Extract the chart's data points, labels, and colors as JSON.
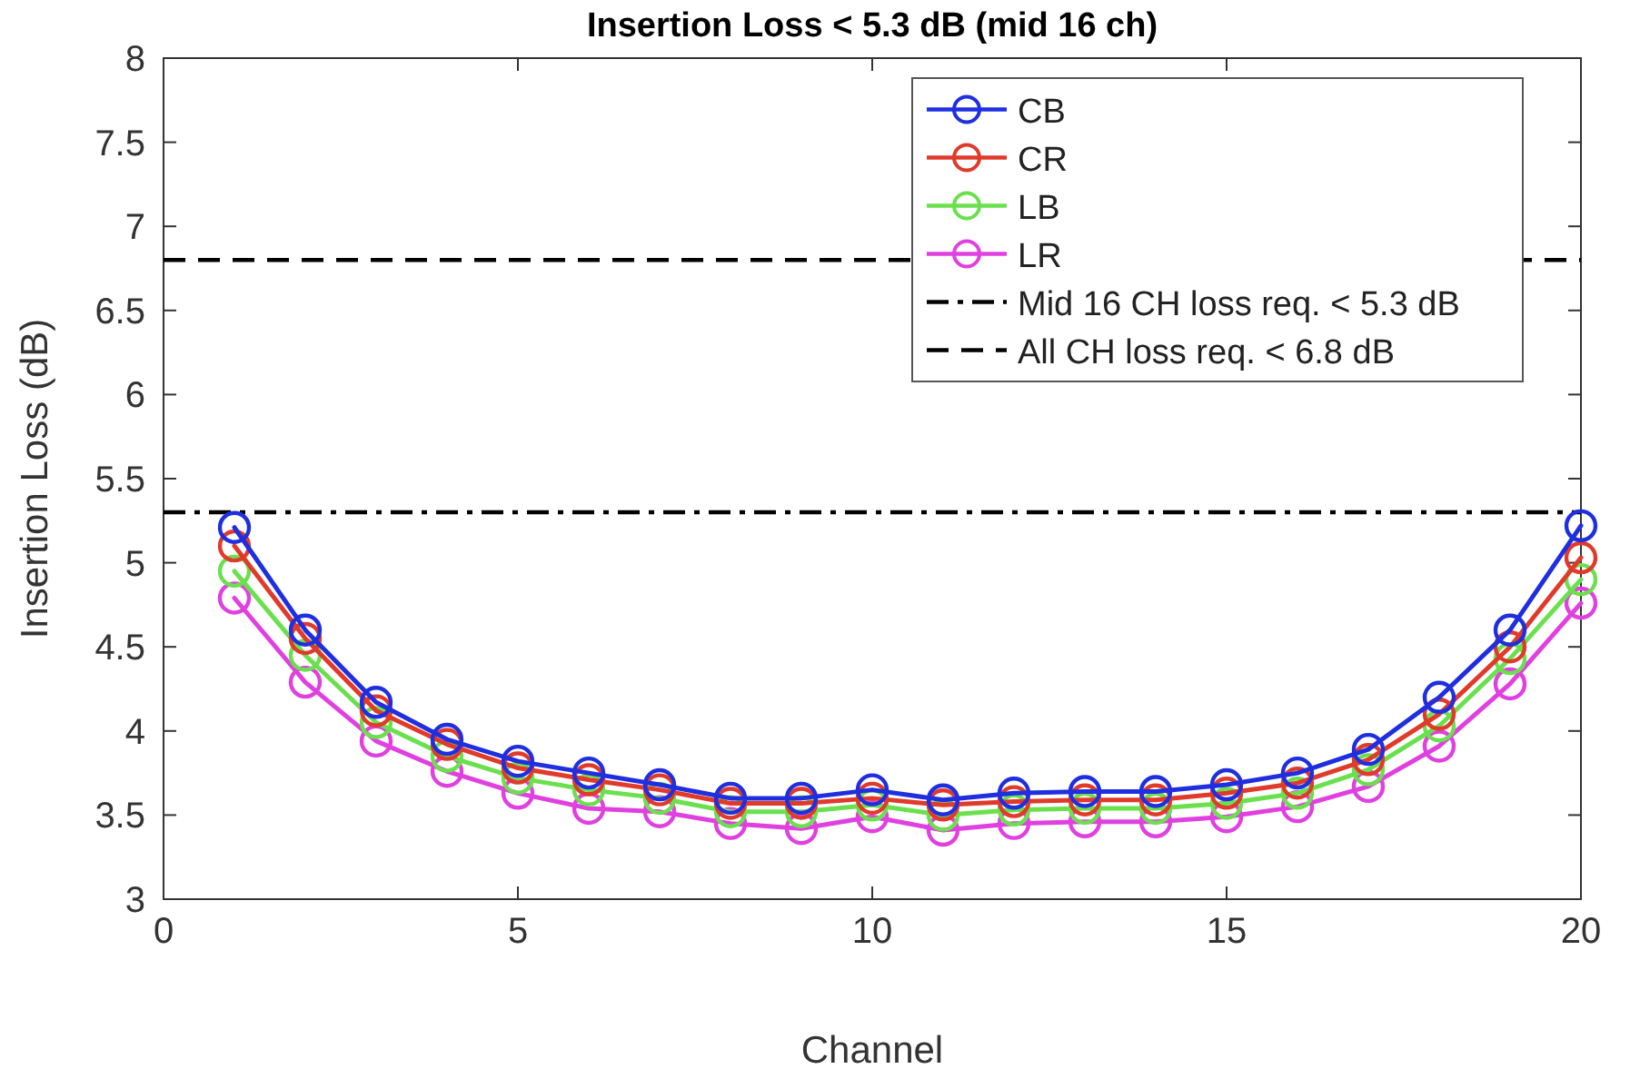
{
  "chart_data": {
    "type": "line",
    "title": "Insertion Loss < 5.3 dB (mid 16 ch)",
    "xlabel": "Channel",
    "ylabel": "Insertion Loss (dB)",
    "x": [
      1,
      2,
      3,
      4,
      5,
      6,
      7,
      8,
      9,
      10,
      11,
      12,
      13,
      14,
      15,
      16,
      17,
      18,
      19,
      20
    ],
    "series": [
      {
        "name": "CB",
        "color": "#1f2fe0",
        "values": [
          5.21,
          4.6,
          4.17,
          3.95,
          3.82,
          3.75,
          3.68,
          3.6,
          3.6,
          3.65,
          3.59,
          3.63,
          3.64,
          3.64,
          3.68,
          3.75,
          3.89,
          4.2,
          4.6,
          5.22
        ]
      },
      {
        "name": "CR",
        "color": "#e03a2a",
        "values": [
          5.1,
          4.55,
          4.12,
          3.92,
          3.78,
          3.71,
          3.65,
          3.57,
          3.57,
          3.6,
          3.56,
          3.58,
          3.59,
          3.59,
          3.63,
          3.69,
          3.83,
          4.1,
          4.5,
          5.03
        ]
      },
      {
        "name": "LB",
        "color": "#6be04e",
        "values": [
          4.95,
          4.45,
          4.05,
          3.85,
          3.72,
          3.65,
          3.6,
          3.52,
          3.52,
          3.56,
          3.5,
          3.53,
          3.54,
          3.54,
          3.57,
          3.63,
          3.77,
          4.03,
          4.43,
          4.9
        ]
      },
      {
        "name": "LR",
        "color": "#e040e0",
        "values": [
          4.79,
          4.29,
          3.94,
          3.76,
          3.63,
          3.54,
          3.52,
          3.45,
          3.42,
          3.49,
          3.41,
          3.45,
          3.46,
          3.46,
          3.49,
          3.55,
          3.67,
          3.91,
          4.28,
          4.76
        ]
      }
    ],
    "ref_lines": [
      {
        "axis": "y",
        "value": 5.3,
        "label": "Mid 16 CH loss req. < 5.3 dB",
        "color": "#000000",
        "line_style": "dashdot"
      },
      {
        "axis": "y",
        "value": 6.8,
        "label": "All CH loss req. < 6.8 dB",
        "color": "#000000",
        "line_style": "dashed"
      }
    ],
    "xlim": [
      0,
      20
    ],
    "xticks": [
      0,
      5,
      10,
      15,
      20
    ],
    "ylim": [
      3,
      8
    ],
    "yticks": [
      3,
      3.5,
      4,
      4.5,
      5,
      5.5,
      6,
      6.5,
      7,
      7.5,
      8
    ],
    "grid": false,
    "legend": "top right",
    "marker": "circle",
    "line_style": "solid"
  }
}
